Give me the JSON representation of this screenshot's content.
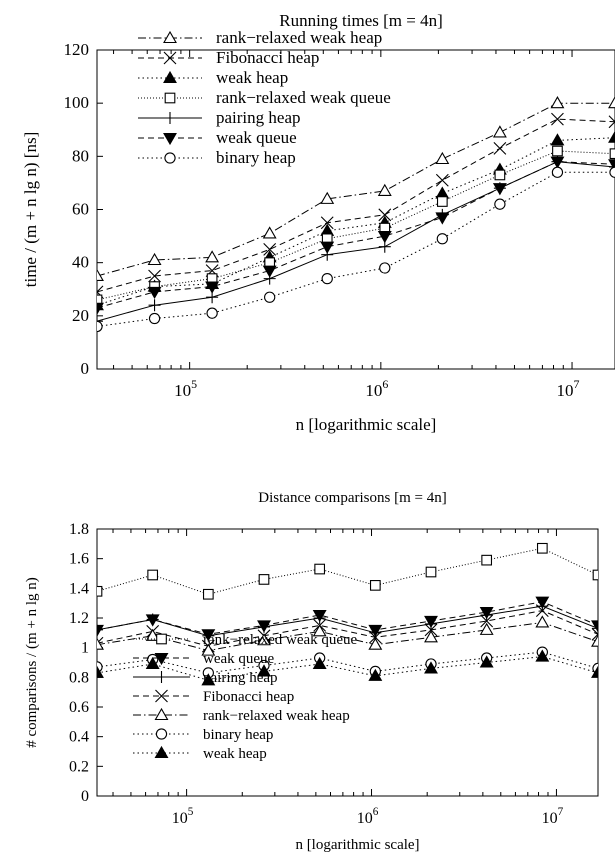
{
  "chart_data": [
    {
      "type": "line",
      "title": "Running times [m = 4n]",
      "xlabel": "n [logarithmic scale]",
      "ylabel": "time / (m + n lg n) [ns]",
      "xscale": "log",
      "xlim": [
        32768,
        16777216
      ],
      "ylim": [
        0,
        120
      ],
      "yticks": [
        "0",
        "20",
        "40",
        "60",
        "80",
        "100",
        "120"
      ],
      "xticks": [
        {
          "base": "10",
          "exp": "5",
          "value": 100000
        },
        {
          "base": "10",
          "exp": "6",
          "value": 1000000
        },
        {
          "base": "10",
          "exp": "7",
          "value": 10000000
        }
      ],
      "legend_position": "top-left",
      "x": [
        32768,
        65536,
        131072,
        262144,
        524288,
        1048576,
        2097152,
        4194304,
        8388608,
        16777216
      ],
      "series": [
        {
          "name": "rank−relaxed weak heap",
          "marker": "triangle-open",
          "dash": "dashdot",
          "values": [
            35,
            41,
            42,
            51,
            64,
            67,
            79,
            89,
            100,
            100
          ]
        },
        {
          "name": "Fibonacci heap",
          "marker": "cross",
          "dash": "dashed",
          "values": [
            29,
            35,
            37,
            45,
            55,
            58,
            71,
            83,
            94,
            93
          ]
        },
        {
          "name": "weak heap",
          "marker": "triangle-filled",
          "dash": "dotted",
          "values": [
            24,
            31,
            32,
            42,
            52,
            55,
            66,
            75,
            86,
            87
          ]
        },
        {
          "name": "rank−relaxed weak queue",
          "marker": "square-open",
          "dash": "densedot",
          "values": [
            26,
            31,
            34,
            40,
            49,
            53,
            63,
            73,
            82,
            81
          ]
        },
        {
          "name": "pairing heap",
          "marker": "plus",
          "dash": "solid",
          "values": [
            18,
            24,
            27,
            34,
            43,
            46,
            58,
            68,
            78,
            76
          ]
        },
        {
          "name": "weak queue",
          "marker": "triangle-down-filled",
          "dash": "dashed",
          "values": [
            23,
            29,
            31,
            37,
            46,
            50,
            57,
            68,
            78,
            77
          ]
        },
        {
          "name": "binary heap",
          "marker": "circle-open",
          "dash": "dotted",
          "values": [
            16,
            19,
            21,
            27,
            34,
            38,
            49,
            62,
            74,
            74
          ]
        }
      ]
    },
    {
      "type": "line",
      "title": "Distance comparisons  [m = 4n]",
      "xlabel": "n [logarithmic scale]",
      "ylabel": "# comparisons / (m + n lg n)",
      "xscale": "log",
      "xlim": [
        32768,
        16777216
      ],
      "ylim": [
        0,
        1.8
      ],
      "yticks": [
        "0",
        "0.2",
        "0.4",
        "0.6",
        "0.8",
        "1",
        "1.2",
        "1.4",
        "1.6",
        "1.8"
      ],
      "xticks": [
        {
          "base": "10",
          "exp": "5",
          "value": 100000
        },
        {
          "base": "10",
          "exp": "6",
          "value": 1000000
        },
        {
          "base": "10",
          "exp": "7",
          "value": 10000000
        }
      ],
      "legend_position": "bottom-left",
      "x": [
        32768,
        65536,
        131072,
        262144,
        524288,
        1048576,
        2097152,
        4194304,
        8388608,
        16777216
      ],
      "series": [
        {
          "name": "rank−relaxed weak queue",
          "marker": "square-open",
          "dash": "densedot",
          "values": [
            1.38,
            1.49,
            1.36,
            1.46,
            1.53,
            1.42,
            1.51,
            1.59,
            1.67,
            1.49
          ]
        },
        {
          "name": "weak queue",
          "marker": "triangle-down-filled",
          "dash": "dashed",
          "values": [
            1.12,
            1.19,
            1.09,
            1.15,
            1.22,
            1.12,
            1.18,
            1.24,
            1.31,
            1.15
          ]
        },
        {
          "name": "pairing heap",
          "marker": "plus",
          "dash": "solid",
          "values": [
            1.12,
            1.19,
            1.08,
            1.14,
            1.2,
            1.1,
            1.16,
            1.22,
            1.28,
            1.13
          ]
        },
        {
          "name": "Fibonacci heap",
          "marker": "cross",
          "dash": "dashed",
          "values": [
            1.03,
            1.11,
            1.01,
            1.08,
            1.15,
            1.07,
            1.12,
            1.18,
            1.25,
            1.09
          ]
        },
        {
          "name": "rank−relaxed weak heap",
          "marker": "triangle-open",
          "dash": "dashdot",
          "values": [
            1.02,
            1.08,
            0.98,
            1.05,
            1.11,
            1.02,
            1.07,
            1.12,
            1.17,
            1.04
          ]
        },
        {
          "name": "binary heap",
          "marker": "circle-open",
          "dash": "dotted",
          "values": [
            0.87,
            0.92,
            0.83,
            0.88,
            0.93,
            0.84,
            0.89,
            0.93,
            0.97,
            0.86
          ]
        },
        {
          "name": "weak heap",
          "marker": "triangle-filled",
          "dash": "dotted",
          "values": [
            0.83,
            0.89,
            0.78,
            0.84,
            0.89,
            0.81,
            0.86,
            0.9,
            0.94,
            0.83
          ]
        }
      ]
    }
  ]
}
